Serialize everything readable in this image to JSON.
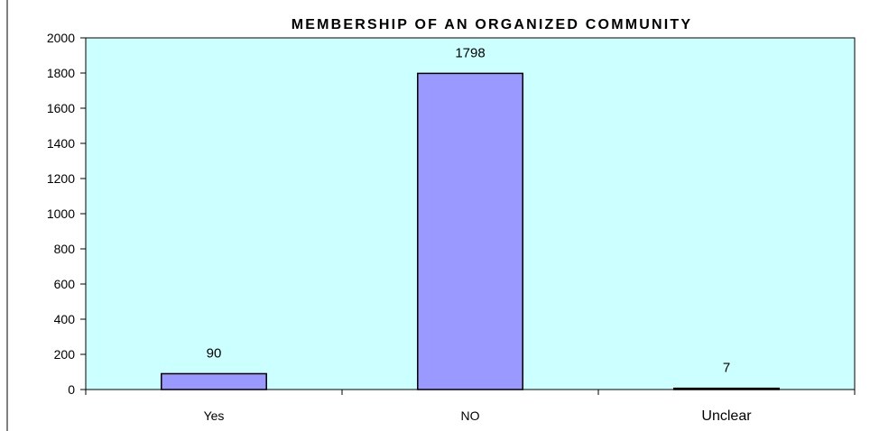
{
  "chart_data": {
    "type": "bar",
    "title": "MEMBERSHIP OF AN ORGANIZED COMMUNITY",
    "categories": [
      "Yes",
      "NO",
      "Unclear"
    ],
    "values": [
      90,
      1798,
      7
    ],
    "data_labels": [
      "90",
      "1798",
      "7"
    ],
    "ylim": [
      0,
      2000
    ],
    "yticks": [
      0,
      200,
      400,
      600,
      800,
      1000,
      1200,
      1400,
      1600,
      1800,
      2000
    ],
    "xlabel": "",
    "ylabel": "",
    "grid": false,
    "legend": "none"
  },
  "colors": {
    "plot_background": "#ccffff",
    "bar_fill": "#9999ff",
    "bar_stroke": "#000000",
    "axis": "#000000"
  }
}
